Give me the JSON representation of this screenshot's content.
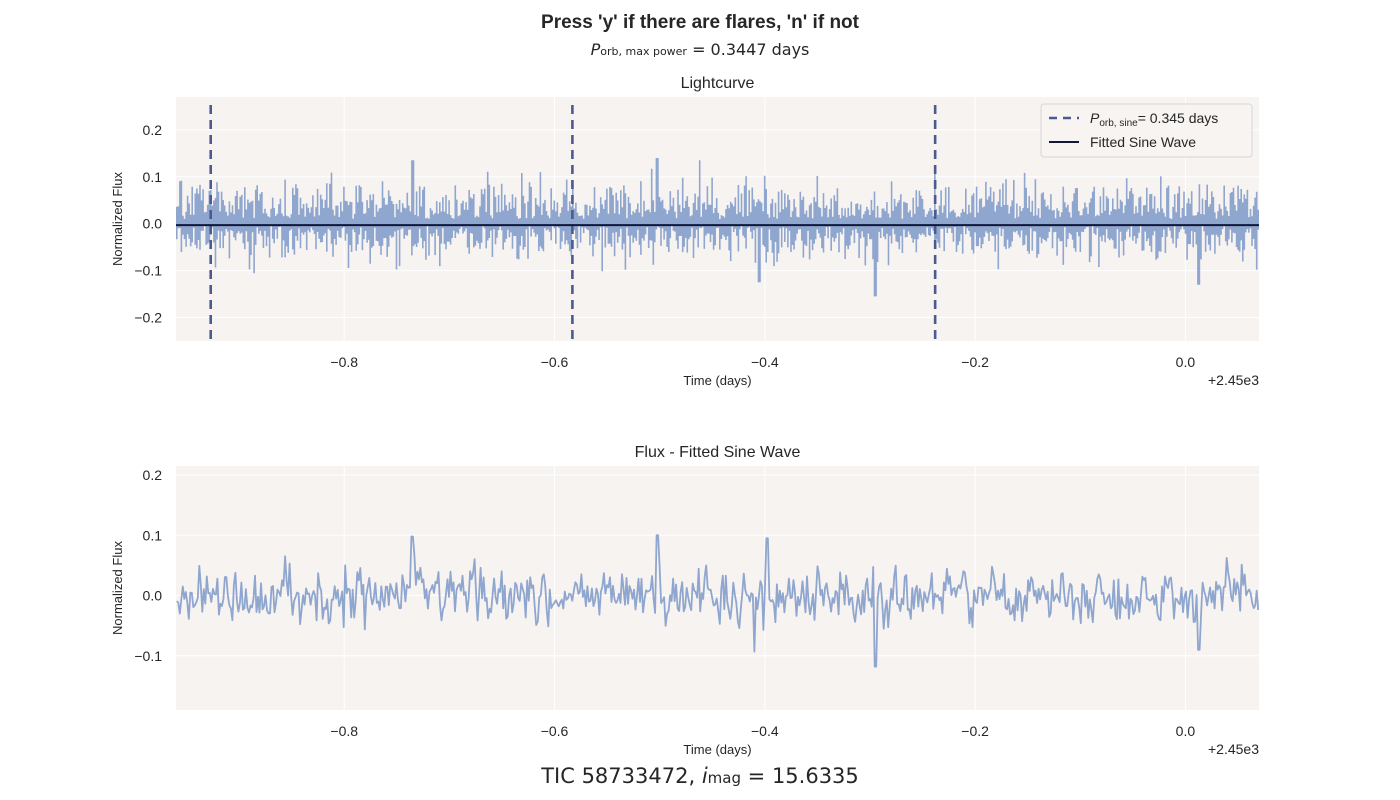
{
  "header": {
    "title": "Press 'y' if there are flares, 'n' if not",
    "subtitle_symbol": "P",
    "subtitle_subscript": "orb, max power",
    "subtitle_value": "= 0.3447 days"
  },
  "footer": {
    "tic_label": "TIC 58733472,",
    "imag_symbol": "i",
    "imag_subscript": "mag",
    "imag_value": "= 15.6335"
  },
  "colors": {
    "panel_bg": "#f7f3f1",
    "grid": "#ffffff",
    "flux": "#8fa6cf",
    "sine": "#10173a",
    "period_marker": "#4c5a92"
  },
  "chart_data": [
    {
      "type": "line",
      "title": "Lightcurve",
      "xlabel": "Time (days)",
      "ylabel": "Normalized Flux",
      "x_offset_label": "+2.45e3",
      "xlim": [
        -0.96,
        0.07
      ],
      "ylim": [
        -0.25,
        0.27
      ],
      "x_ticks": [
        -0.8,
        -0.6,
        -0.4,
        -0.2,
        0.0
      ],
      "x_tick_labels": [
        "−0.8",
        "−0.6",
        "−0.4",
        "−0.2",
        "0.0"
      ],
      "y_ticks": [
        -0.2,
        -0.1,
        0.0,
        0.1,
        0.2
      ],
      "y_tick_labels": [
        "−0.2",
        "−0.1",
        "0.0",
        "0.1",
        "0.2"
      ],
      "grid": true,
      "legend_position": "top-right",
      "series": [
        {
          "name": "Fitted Sine Wave",
          "style": "solid",
          "amplitude": 0.002,
          "period": 0.345,
          "values_at_xlim": [
            -0.003,
            -0.003
          ]
        },
        {
          "style": "error-bars",
          "sigma": 0.05,
          "x_range": [
            -0.96,
            0.07
          ]
        }
      ],
      "vertical_markers": {
        "legend_symbol": "P",
        "legend_subscript": "orb, sine",
        "legend_value": "= 0.345 days",
        "x": [
          -0.927,
          -0.583,
          -0.238
        ]
      },
      "annotations": {
        "spikes": [
          {
            "x": -0.735,
            "y": 0.135
          },
          {
            "x": -0.502,
            "y": 0.14
          },
          {
            "x": -0.462,
            "y": 0.135
          },
          {
            "x": -0.295,
            "y": -0.155
          },
          {
            "x": -0.405,
            "y": -0.125
          },
          {
            "x": 0.013,
            "y": -0.13
          }
        ]
      }
    },
    {
      "type": "line",
      "title": "Flux - Fitted Sine Wave",
      "xlabel": "Time (days)",
      "ylabel": "Normalized Flux",
      "x_offset_label": "+2.45e3",
      "xlim": [
        -0.96,
        0.07
      ],
      "ylim": [
        -0.19,
        0.215
      ],
      "x_ticks": [
        -0.8,
        -0.6,
        -0.4,
        -0.2,
        0.0
      ],
      "x_tick_labels": [
        "−0.8",
        "−0.6",
        "−0.4",
        "−0.2",
        "0.0"
      ],
      "y_ticks": [
        -0.1,
        0.0,
        0.1,
        0.2
      ],
      "y_tick_labels": [
        "−0.1",
        "0.0",
        "0.1",
        "0.2"
      ],
      "grid": true,
      "series": [
        {
          "style": "solid",
          "sigma": 0.035,
          "x_range": [
            -0.96,
            0.07
          ]
        }
      ],
      "annotations": {
        "spikes": [
          {
            "x": -0.735,
            "y": 0.098
          },
          {
            "x": -0.502,
            "y": 0.1
          },
          {
            "x": -0.398,
            "y": 0.095
          },
          {
            "x": -0.295,
            "y": -0.118
          },
          {
            "x": -0.41,
            "y": -0.093
          },
          {
            "x": 0.013,
            "y": -0.09
          }
        ]
      }
    }
  ]
}
